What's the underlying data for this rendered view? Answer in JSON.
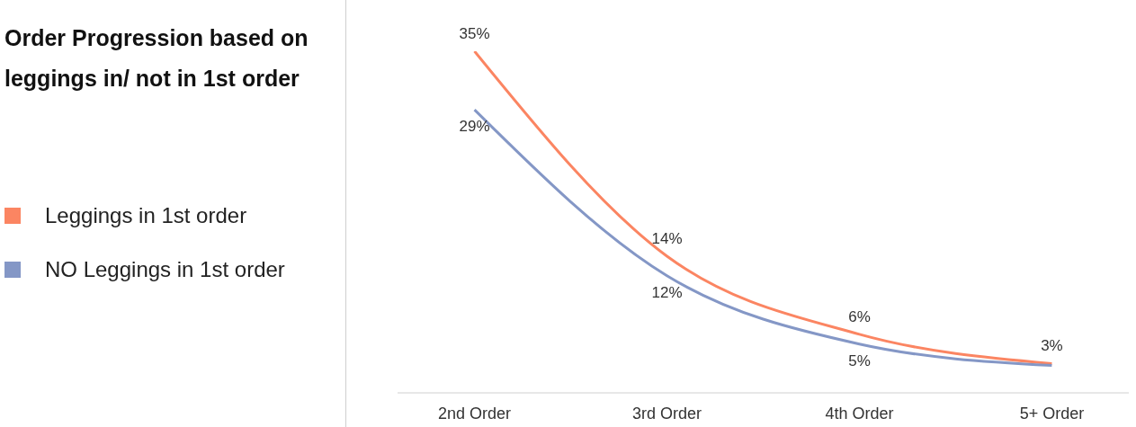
{
  "chart_data": {
    "type": "line",
    "title": "Order Progression based on leggings in/ not in 1st order",
    "categories": [
      "2nd Order",
      "3rd Order",
      "4th Order",
      "5+ Order"
    ],
    "series": [
      {
        "name": "Leggings in 1st order",
        "color": "#fb8562",
        "values": [
          35,
          14,
          6,
          3
        ],
        "value_labels": [
          "35%",
          "14%",
          "6%",
          "3%"
        ]
      },
      {
        "name": "NO Leggings in 1st order",
        "color": "#8497c6",
        "values": [
          29,
          12,
          5,
          2.8
        ],
        "value_labels": [
          "29%",
          "12%",
          "5%",
          null
        ]
      }
    ],
    "legend": "left",
    "grid": false,
    "marker": "none",
    "line_style": "solid",
    "tick_labels": "x"
  }
}
